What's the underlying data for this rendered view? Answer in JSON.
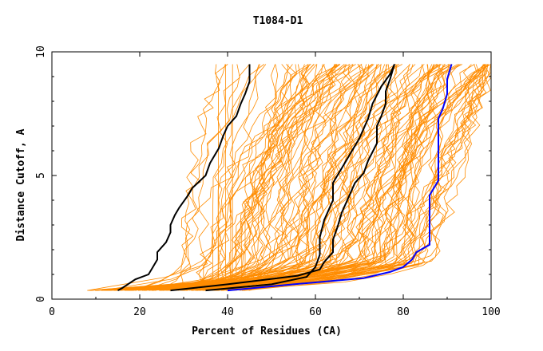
{
  "chart_data": {
    "type": "line",
    "title": "T1084-D1",
    "xlabel": "Percent of Residues (CA)",
    "ylabel": "Distance Cutoff, A",
    "xlim": [
      0,
      100
    ],
    "ylim": [
      0,
      10
    ],
    "x_ticks": [
      "0",
      "20",
      "40",
      "60",
      "80",
      "100"
    ],
    "y_ticks": [
      "0",
      "5",
      "10"
    ],
    "colors": {
      "background_models": "#ff8c00",
      "highlight_black": "#000000",
      "highlight_blue": "#0000ff",
      "axes": "#000000"
    },
    "background_series_count": 130,
    "series": [
      {
        "name": "highlight-black-1",
        "color": "#000000",
        "points": [
          [
            15,
            0.35
          ],
          [
            16,
            0.45
          ],
          [
            19,
            0.8
          ],
          [
            22,
            1.0
          ],
          [
            23,
            1.3
          ],
          [
            24,
            1.6
          ],
          [
            24,
            1.9
          ],
          [
            26,
            2.3
          ],
          [
            27,
            2.7
          ],
          [
            27,
            3.0
          ],
          [
            28,
            3.4
          ],
          [
            29,
            3.7
          ],
          [
            31,
            4.2
          ],
          [
            32,
            4.5
          ],
          [
            35,
            5.0
          ],
          [
            36,
            5.5
          ],
          [
            38,
            6.1
          ],
          [
            39,
            6.6
          ],
          [
            40,
            7.0
          ],
          [
            42,
            7.4
          ],
          [
            43,
            7.9
          ],
          [
            44,
            8.3
          ],
          [
            45,
            8.8
          ],
          [
            45,
            9.5
          ]
        ]
      },
      {
        "name": "highlight-black-2",
        "color": "#000000",
        "points": [
          [
            27,
            0.35
          ],
          [
            40,
            0.6
          ],
          [
            56,
            0.95
          ],
          [
            61,
            1.2
          ],
          [
            62,
            1.5
          ],
          [
            64,
            1.9
          ],
          [
            64,
            2.4
          ],
          [
            65,
            2.9
          ],
          [
            66,
            3.5
          ],
          [
            67,
            3.9
          ],
          [
            68,
            4.3
          ],
          [
            69,
            4.7
          ],
          [
            71,
            5.1
          ],
          [
            72,
            5.6
          ],
          [
            74,
            6.3
          ],
          [
            74,
            7.0
          ],
          [
            75,
            7.4
          ],
          [
            76,
            7.9
          ],
          [
            76,
            8.4
          ],
          [
            77,
            8.9
          ],
          [
            78,
            9.5
          ]
        ]
      },
      {
        "name": "highlight-black-3",
        "color": "#000000",
        "points": [
          [
            35,
            0.35
          ],
          [
            50,
            0.6
          ],
          [
            58,
            0.9
          ],
          [
            60,
            1.3
          ],
          [
            61,
            1.8
          ],
          [
            61,
            2.5
          ],
          [
            62,
            3.2
          ],
          [
            64,
            4.0
          ],
          [
            64,
            4.7
          ],
          [
            66,
            5.3
          ],
          [
            68,
            5.9
          ],
          [
            70,
            6.5
          ],
          [
            72,
            7.3
          ],
          [
            73,
            7.9
          ],
          [
            75,
            8.6
          ],
          [
            77,
            9.1
          ],
          [
            78,
            9.5
          ]
        ]
      },
      {
        "name": "highlight-blue",
        "color": "#0000ff",
        "points": [
          [
            40,
            0.35
          ],
          [
            55,
            0.6
          ],
          [
            71,
            0.85
          ],
          [
            77,
            1.1
          ],
          [
            80,
            1.3
          ],
          [
            82,
            1.6
          ],
          [
            83,
            1.9
          ],
          [
            86,
            2.2
          ],
          [
            86,
            2.9
          ],
          [
            86,
            3.6
          ],
          [
            86,
            4.2
          ],
          [
            87,
            4.5
          ],
          [
            88,
            4.8
          ],
          [
            88,
            5.5
          ],
          [
            88,
            6.1
          ],
          [
            88,
            6.7
          ],
          [
            88,
            7.3
          ],
          [
            89,
            7.7
          ],
          [
            90,
            8.3
          ],
          [
            90,
            8.9
          ],
          [
            91,
            9.5
          ]
        ]
      }
    ]
  }
}
